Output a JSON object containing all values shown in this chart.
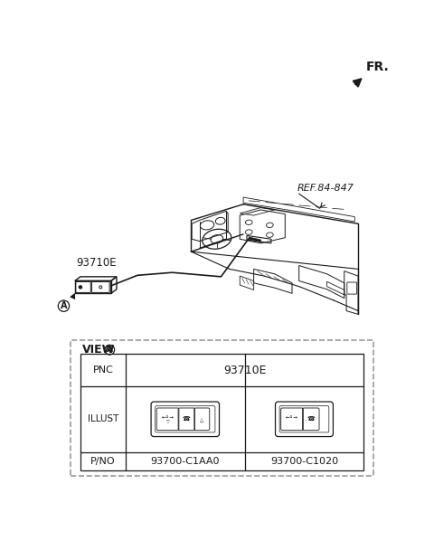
{
  "bg_color": "#ffffff",
  "fr_label": "FR.",
  "ref_label": "REF.84-847",
  "callout_label": "93710E",
  "view_label": "VIEW",
  "table_pnc": "93710E",
  "table_pno_1": "93700-C1AA0",
  "table_pno_2": "93700-C1020",
  "line_color": "#1a1a1a",
  "dashed_color": "#999999"
}
